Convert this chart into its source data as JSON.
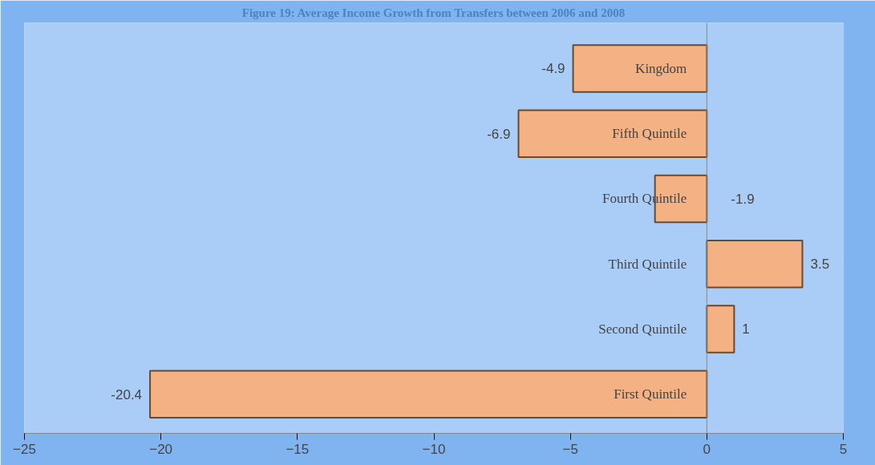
{
  "chart_data": {
    "type": "bar",
    "orientation": "horizontal",
    "title": "Figure 19: Average Income Growth from Transfers between 2006 and 2008",
    "categories": [
      "Kingdom",
      "Fifth Quintile",
      "Fourth Quintile",
      "Third Quintile",
      "Second Quintile",
      "First Quintile"
    ],
    "values": [
      -4.9,
      -6.9,
      -1.9,
      3.5,
      1,
      -20.4
    ],
    "color": "#f4b183",
    "xlim": [
      -25,
      5
    ],
    "xticks": [
      -25,
      -20,
      -15,
      -10,
      -5,
      0,
      5
    ],
    "grid": false,
    "data_labels": true
  }
}
